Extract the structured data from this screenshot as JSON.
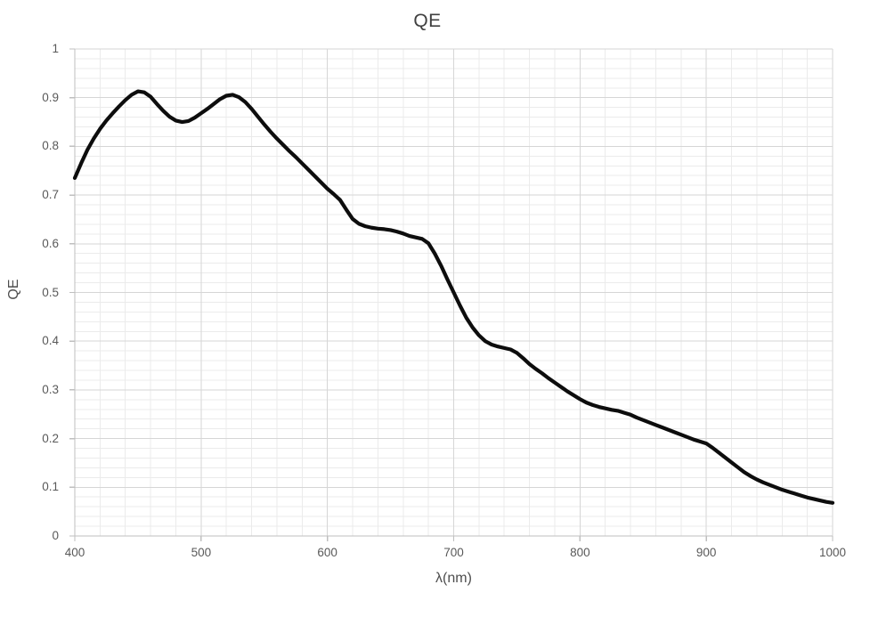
{
  "chart_data": {
    "type": "line",
    "title": "QE",
    "xlabel": "λ(nm)",
    "ylabel": "QE",
    "xlim": [
      400,
      1000
    ],
    "ylim": [
      0,
      1
    ],
    "x_ticks": [
      400,
      500,
      600,
      700,
      800,
      900,
      1000
    ],
    "x_tick_labels": [
      "400",
      "500",
      "600",
      "700",
      "800",
      "900",
      "1000"
    ],
    "y_ticks": [
      0,
      0.1,
      0.2,
      0.3,
      0.4,
      0.5,
      0.6,
      0.7,
      0.8,
      0.9,
      1
    ],
    "y_tick_labels": [
      "0",
      "0.1",
      "0.2",
      "0.3",
      "0.4",
      "0.5",
      "0.6",
      "0.7",
      "0.8",
      "0.9",
      "1"
    ],
    "x_minor_step": 20,
    "y_minor_step": 0.02,
    "grid": "major-and-minor",
    "legend": "none",
    "series": [
      {
        "name": "QE",
        "x": [
          400,
          405,
          410,
          415,
          420,
          425,
          430,
          435,
          440,
          445,
          450,
          455,
          460,
          465,
          470,
          475,
          480,
          485,
          490,
          495,
          500,
          505,
          510,
          515,
          520,
          525,
          530,
          535,
          540,
          545,
          550,
          555,
          560,
          565,
          570,
          575,
          580,
          585,
          590,
          595,
          600,
          605,
          610,
          615,
          620,
          625,
          630,
          635,
          640,
          645,
          650,
          655,
          660,
          665,
          670,
          675,
          680,
          685,
          690,
          695,
          700,
          705,
          710,
          715,
          720,
          725,
          730,
          735,
          740,
          745,
          750,
          755,
          760,
          765,
          770,
          775,
          780,
          785,
          790,
          795,
          800,
          805,
          810,
          815,
          820,
          825,
          830,
          835,
          840,
          845,
          850,
          855,
          860,
          865,
          870,
          875,
          880,
          885,
          890,
          895,
          900,
          905,
          910,
          915,
          920,
          925,
          930,
          935,
          940,
          945,
          950,
          955,
          960,
          965,
          970,
          975,
          980,
          985,
          990,
          995,
          1000
        ],
        "y": [
          0.735,
          0.765,
          0.793,
          0.816,
          0.836,
          0.853,
          0.868,
          0.882,
          0.895,
          0.906,
          0.913,
          0.911,
          0.902,
          0.887,
          0.873,
          0.861,
          0.853,
          0.85,
          0.852,
          0.859,
          0.868,
          0.877,
          0.887,
          0.897,
          0.904,
          0.906,
          0.901,
          0.891,
          0.877,
          0.861,
          0.845,
          0.83,
          0.816,
          0.803,
          0.79,
          0.778,
          0.765,
          0.752,
          0.739,
          0.726,
          0.713,
          0.702,
          0.69,
          0.67,
          0.651,
          0.641,
          0.636,
          0.633,
          0.631,
          0.63,
          0.628,
          0.625,
          0.621,
          0.616,
          0.613,
          0.61,
          0.601,
          0.58,
          0.555,
          0.527,
          0.5,
          0.473,
          0.448,
          0.428,
          0.412,
          0.4,
          0.393,
          0.389,
          0.386,
          0.383,
          0.376,
          0.365,
          0.353,
          0.343,
          0.334,
          0.324,
          0.315,
          0.306,
          0.297,
          0.289,
          0.281,
          0.274,
          0.269,
          0.265,
          0.262,
          0.259,
          0.257,
          0.253,
          0.249,
          0.243,
          0.238,
          0.233,
          0.228,
          0.223,
          0.218,
          0.213,
          0.208,
          0.203,
          0.198,
          0.194,
          0.19,
          0.181,
          0.171,
          0.161,
          0.151,
          0.141,
          0.131,
          0.123,
          0.116,
          0.11,
          0.105,
          0.1,
          0.095,
          0.091,
          0.087,
          0.083,
          0.079,
          0.076,
          0.073,
          0.07,
          0.068
        ]
      }
    ],
    "colors": {
      "line": "#0d0d0d",
      "grid_minor": "#ebebeb",
      "grid_major": "#d6d6d6",
      "axis": "#bfbfbf",
      "tick_label": "#595959",
      "title": "#404040",
      "background": "#ffffff"
    },
    "line_width": 4.2
  }
}
